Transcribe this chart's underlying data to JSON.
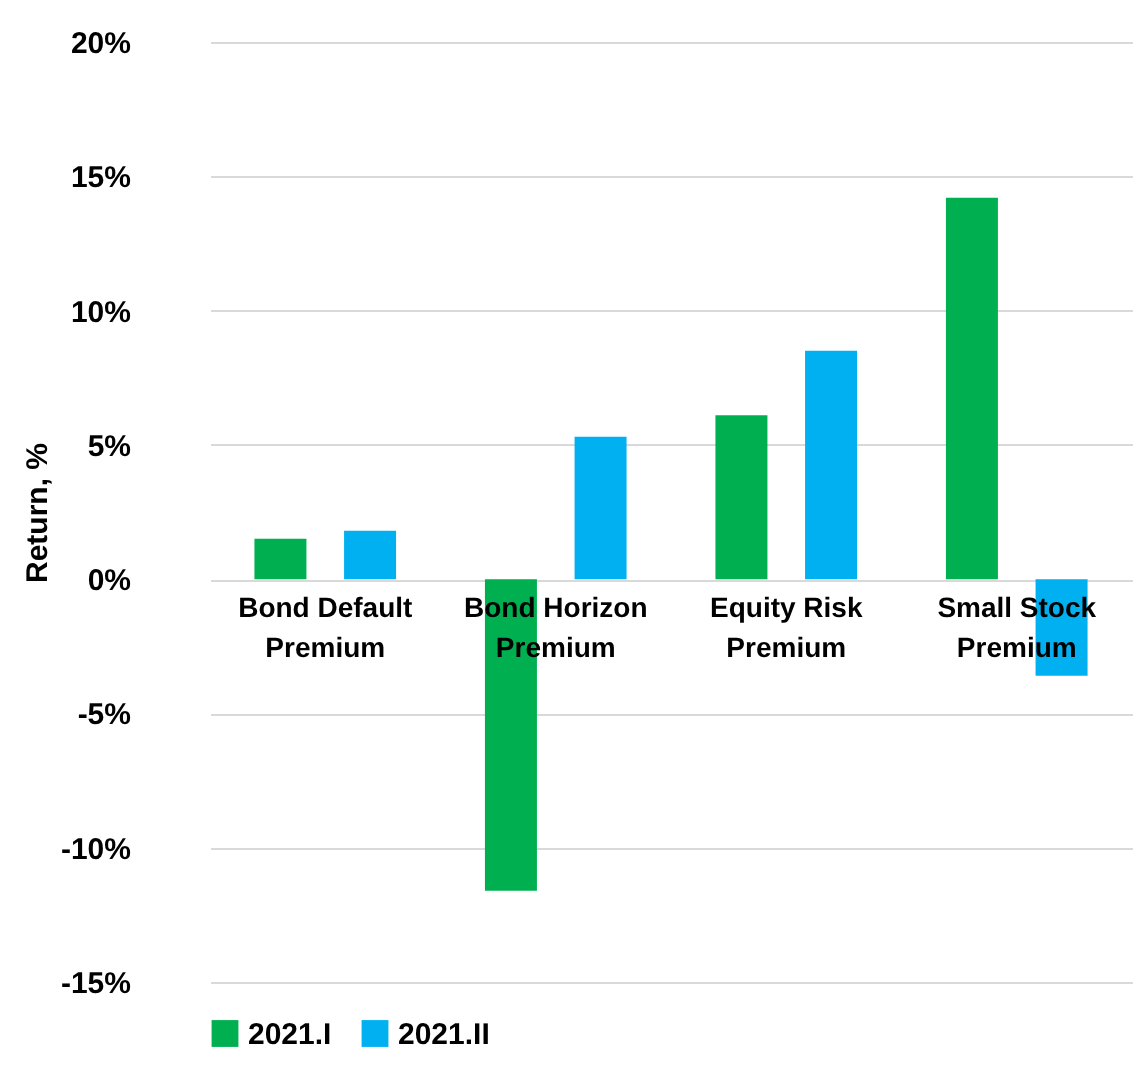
{
  "chart_data": {
    "type": "bar",
    "ylabel": "Return, %",
    "categories": [
      "Bond Default\nPremium",
      "Bond Horizon\nPremium",
      "Equity Risk\nPremium",
      "Small Stock\nPremium"
    ],
    "series": [
      {
        "name": "2021.I",
        "color": "#00b050",
        "values": [
          1.5,
          -11.6,
          6.1,
          14.2
        ]
      },
      {
        "name": "2021.II",
        "color": "#00b0f0",
        "values": [
          1.8,
          5.3,
          8.5,
          -3.6
        ]
      }
    ],
    "ylim": [
      -15,
      20
    ],
    "yticks": [
      {
        "value": -15,
        "label": "-15%"
      },
      {
        "value": -10,
        "label": "-10%"
      },
      {
        "value": -5,
        "label": "-5%"
      },
      {
        "value": 0,
        "label": "0%"
      },
      {
        "value": 5,
        "label": "5%"
      },
      {
        "value": 10,
        "label": "10%"
      },
      {
        "value": 15,
        "label": "15%"
      },
      {
        "value": 20,
        "label": "20%"
      }
    ],
    "grid": "y",
    "legend": "bottom"
  }
}
